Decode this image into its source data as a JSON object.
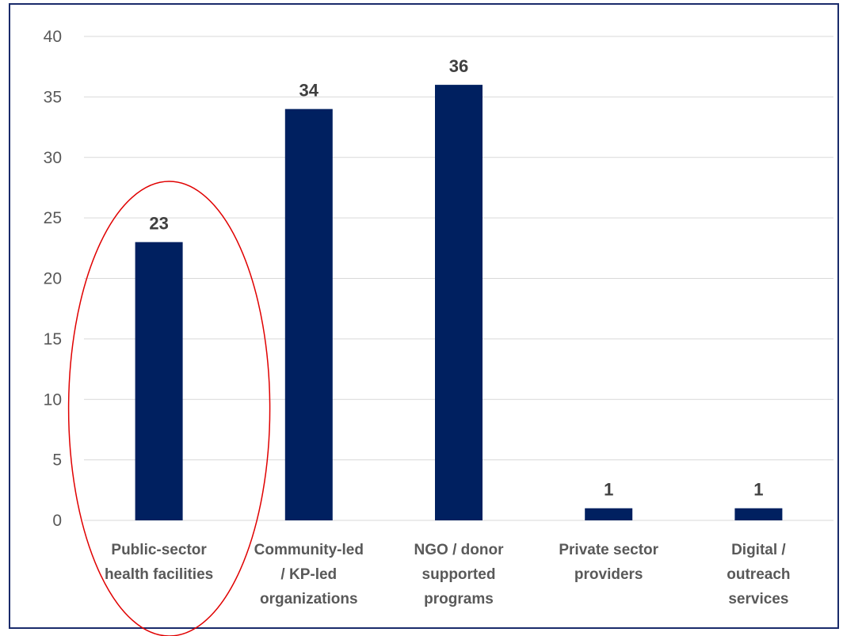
{
  "chart_data": {
    "type": "bar",
    "categories": [
      [
        "Public-sector",
        "health facilities"
      ],
      [
        "Community-led",
        "/ KP-led",
        "organizations"
      ],
      [
        "NGO / donor",
        "supported",
        "programs"
      ],
      [
        "Private sector",
        "providers"
      ],
      [
        "Digital /",
        "outreach",
        "services"
      ]
    ],
    "values": [
      23,
      34,
      36,
      1,
      1
    ],
    "title": "",
    "xlabel": "",
    "ylabel": "",
    "ylim": [
      0,
      40
    ],
    "yticks": [
      0,
      5,
      10,
      15,
      20,
      25,
      30,
      35,
      40
    ],
    "grid": true,
    "legend": "none",
    "bar_color": "#002060",
    "highlight": {
      "shape": "ellipse",
      "color": "#e00000",
      "category_index": 0
    }
  }
}
